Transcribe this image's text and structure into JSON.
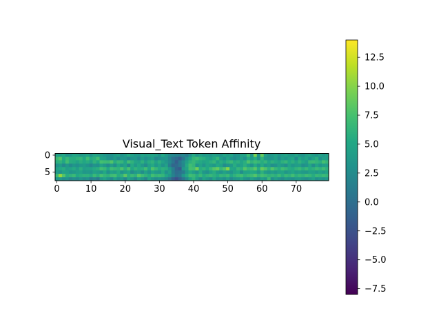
{
  "chart_data": {
    "type": "heatmap",
    "title": "Visual_Text Token Affinity",
    "xlabel": "",
    "ylabel": "",
    "n_rows": 8,
    "n_cols": 80,
    "x_ticks": [
      0,
      10,
      20,
      30,
      40,
      50,
      60,
      70
    ],
    "y_ticks": [
      0,
      5
    ],
    "grid": false,
    "colormap": "viridis",
    "colorbar": {
      "min": -8.0,
      "max": 14.0,
      "ticks": [
        -7.5,
        -5.0,
        -2.5,
        0.0,
        2.5,
        5.0,
        7.5,
        10.0,
        12.5
      ],
      "tick_labels": [
        "−7.5",
        "−5.0",
        "−2.5",
        "0.0",
        "2.5",
        "5.0",
        "7.5",
        "10.0",
        "12.5"
      ],
      "location": "right"
    },
    "values": [
      [
        4.6,
        4.2,
        5.1,
        3.2,
        3.6,
        5.0,
        4.6,
        3.8,
        4.2,
        4.7,
        3.3,
        4.9,
        4.4,
        4.1,
        3.6,
        3.0,
        3.0,
        4.0,
        4.4,
        3.1,
        4.0,
        5.3,
        4.4,
        3.8,
        3.6,
        4.7,
        4.2,
        4.6,
        4.7,
        4.3,
        3.2,
        5.1,
        3.7,
        2.5,
        2.1,
        1.7,
        1.4,
        2.0,
        1.1,
        3.1,
        5.3,
        3.3,
        4.5,
        3.8,
        4.0,
        3.6,
        4.4,
        3.9,
        3.6,
        4.9,
        4.1,
        4.7,
        3.2,
        3.4,
        4.5,
        4.7,
        7.0,
        3.6,
        9.6,
        3.3,
        8.8,
        4.4,
        3.2,
        3.8,
        4.5,
        3.4,
        4.2,
        4.8,
        3.9,
        3.8,
        4.8,
        3.5,
        3.2,
        4.2,
        4.9,
        4.0,
        3.4,
        4.6,
        3.9,
        4.3
      ],
      [
        6.8,
        8.0,
        5.3,
        6.6,
        5.7,
        5.6,
        6.2,
        6.4,
        5.1,
        7.1,
        5.4,
        5.9,
        7.2,
        4.6,
        4.3,
        3.2,
        2.8,
        4.0,
        2.6,
        3.6,
        3.5,
        2.1,
        3.3,
        3.7,
        2.4,
        4.0,
        2.8,
        3.7,
        4.1,
        2.1,
        2.8,
        3.2,
        3.5,
        1.8,
        0.2,
        -0.4,
        -1.6,
        0.5,
        3.0,
        4.6,
        6.4,
        7.1,
        6.2,
        5.8,
        4.8,
        4.1,
        5.3,
        6.5,
        4.2,
        3.1,
        4.9,
        3.4,
        2.6,
        3.6,
        4.3,
        3.0,
        5.4,
        4.0,
        5.6,
        3.1,
        6.2,
        3.7,
        3.4,
        3.5,
        4.4,
        2.8,
        4.2,
        3.6,
        4.4,
        5.0,
        2.5,
        5.1,
        4.0,
        4.8,
        3.3,
        4.7,
        5.9,
        3.1,
        4.4,
        4.2
      ],
      [
        5.8,
        6.2,
        5.1,
        7.2,
        5.6,
        5.4,
        4.6,
        5.7,
        5.0,
        5.6,
        4.5,
        6.2,
        5.1,
        7.4,
        7.0,
        6.8,
        7.9,
        5.6,
        6.7,
        6.4,
        4.8,
        7.2,
        6.1,
        4.8,
        4.4,
        6.0,
        4.2,
        5.6,
        6.1,
        4.4,
        5.8,
        4.5,
        3.6,
        2.3,
        0.6,
        -1.4,
        0.9,
        2.5,
        4.3,
        6.0,
        6.6,
        5.7,
        5.3,
        4.6,
        5.1,
        5.8,
        6.4,
        4.3,
        5.7,
        4.9,
        6.1,
        6.7,
        5.4,
        5.9,
        4.8,
        5.8,
        7.8,
        6.2,
        7.0,
        6.5,
        5.6,
        6.4,
        4.9,
        6.0,
        5.3,
        4.6,
        6.0,
        6.5,
        5.2,
        5.9,
        4.6,
        6.1,
        5.1,
        4.1,
        6.6,
        6.8,
        6.3,
        5.8,
        7.4,
        6.5
      ],
      [
        3.1,
        4.0,
        2.3,
        3.7,
        2.5,
        3.5,
        2.9,
        3.7,
        4.0,
        3.2,
        2.1,
        3.3,
        2.9,
        4.6,
        3.7,
        2.5,
        4.1,
        2.7,
        5.1,
        3.7,
        4.6,
        2.2,
        5.3,
        3.8,
        5.1,
        3.8,
        2.6,
        4.4,
        5.3,
        3.6,
        4.7,
        3.2,
        4.4,
        1.3,
        -0.8,
        -0.4,
        0.7,
        2.1,
        5.3,
        7.2,
        6.4,
        3.5,
        4.6,
        3.4,
        4.9,
        4.2,
        3.7,
        5.2,
        4.6,
        2.6,
        3.4,
        3.9,
        5.6,
        4.1,
        4.5,
        5.8,
        4.3,
        3.2,
        5.4,
        3.5,
        5.4,
        3.6,
        4.2,
        2.8,
        3.2,
        4.4,
        3.8,
        2.8,
        4.7,
        3.6,
        4.1,
        4.3,
        2.8,
        3.4,
        5.0,
        2.8,
        4.8,
        3.5,
        4.2,
        4.4
      ],
      [
        4.4,
        5.2,
        5.6,
        4.1,
        4.6,
        5.4,
        4.1,
        5.8,
        4.2,
        4.6,
        4.6,
        5.4,
        5.7,
        7.2,
        6.6,
        5.2,
        7.0,
        6.5,
        6.2,
        7.7,
        5.8,
        7.5,
        5.0,
        6.2,
        5.4,
        5.8,
        7.1,
        4.9,
        7.8,
        6.5,
        5.3,
        6.0,
        5.6,
        3.7,
        1.4,
        -1.0,
        -1.7,
        3.5,
        4.6,
        7.4,
        7.2,
        9.2,
        5.6,
        6.2,
        5.2,
        6.6,
        8.0,
        8.7,
        6.6,
        7.8,
        10.1,
        5.1,
        4.7,
        6.4,
        5.8,
        8.0,
        6.6,
        7.0,
        8.2,
        5.6,
        8.8,
        7.8,
        6.0,
        7.9,
        6.5,
        5.6,
        7.1,
        6.4,
        5.5,
        5.3,
        6.2,
        6.7,
        5.7,
        6.6,
        5.5,
        6.0,
        6.8,
        6.2,
        7.0,
        6.0
      ],
      [
        4.0,
        3.2,
        4.5,
        4.3,
        3.4,
        3.8,
        4.2,
        4.6,
        3.6,
        3.8,
        3.4,
        4.6,
        4.1,
        3.6,
        5.2,
        3.0,
        4.6,
        4.1,
        5.4,
        3.3,
        4.2,
        5.0,
        2.6,
        3.8,
        4.1,
        2.7,
        4.4,
        3.1,
        4.8,
        3.9,
        3.6,
        5.4,
        3.1,
        4.3,
        1.2,
        -0.2,
        0.3,
        1.1,
        3.7,
        5.4,
        4.2,
        3.3,
        5.5,
        3.6,
        3.0,
        4.6,
        5.6,
        4.0,
        3.4,
        4.5,
        3.8,
        3.3,
        4.6,
        5.2,
        2.7,
        4.6,
        4.7,
        5.4,
        5.2,
        3.7,
        6.0,
        4.1,
        3.6,
        4.3,
        3.7,
        4.5,
        4.8,
        3.5,
        4.2,
        5.0,
        4.0,
        4.3,
        3.9,
        3.7,
        4.6,
        4.4,
        3.8,
        4.6,
        4.0,
        4.8
      ],
      [
        6.8,
        10.5,
        8.0,
        5.6,
        6.2,
        6.8,
        5.2,
        5.7,
        6.1,
        6.0,
        5.3,
        6.8,
        5.7,
        7.4,
        6.4,
        6.0,
        7.0,
        7.4,
        5.6,
        6.2,
        8.4,
        5.8,
        6.8,
        6.1,
        8.2,
        7.0,
        6.2,
        5.4,
        7.3,
        6.4,
        6.8,
        6.4,
        5.0,
        3.6,
        1.7,
        0.2,
        0.8,
        3.6,
        5.3,
        7.2,
        6.8,
        5.6,
        6.7,
        5.4,
        6.1,
        6.6,
        6.0,
        5.4,
        6.5,
        6.2,
        6.8,
        5.2,
        6.1,
        6.8,
        7.2,
        6.0,
        6.6,
        7.0,
        8.0,
        6.3,
        7.4,
        6.8,
        6.1,
        6.4,
        5.9,
        6.9,
        5.6,
        6.6,
        6.1,
        7.2,
        5.9,
        6.6,
        6.2,
        7.0,
        6.5,
        5.6,
        6.7,
        6.3,
        6.9,
        6.4
      ],
      [
        3.3,
        3.8,
        2.7,
        3.2,
        2.0,
        2.8,
        2.4,
        3.4,
        2.6,
        3.1,
        1.3,
        2.1,
        1.0,
        3.6,
        4.5,
        3.3,
        2.4,
        4.3,
        3.1,
        3.9,
        2.1,
        4.8,
        3.6,
        2.2,
        4.4,
        3.4,
        1.9,
        4.7,
        3.5,
        2.6,
        3.3,
        2.8,
        2.0,
        0.7,
        -1.4,
        -2.6,
        -1.1,
        0.5,
        2.5,
        4.8,
        6.2,
        4.2,
        2.6,
        4.6,
        3.7,
        2.7,
        4.8,
        3.1,
        3.6,
        2.9,
        4.2,
        2.4,
        3.4,
        3.8,
        4.7,
        3.4,
        2.8,
        4.5,
        3.6,
        2.8,
        4.4,
        3.6,
        6.8,
        2.9,
        4.1,
        3.2,
        2.6,
        3.8,
        3.3,
        2.9,
        3.8,
        4.0,
        3.3,
        2.8,
        3.7,
        4.4,
        2.9,
        3.6,
        3.2,
        3.8
      ]
    ]
  }
}
